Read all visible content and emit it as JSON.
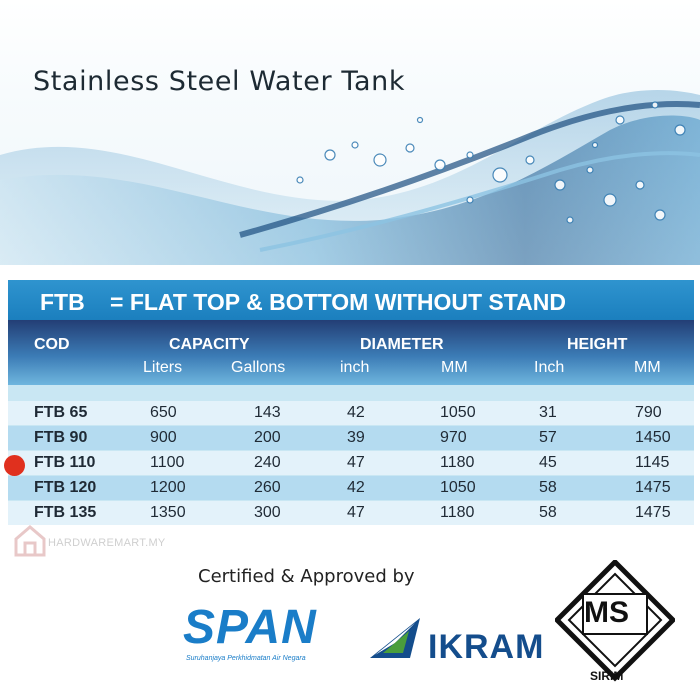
{
  "hero": {
    "title": "Stainless Steel Water Tank"
  },
  "table": {
    "banner_code": "FTB",
    "banner_desc": "= FLAT TOP & BOTTOM WITHOUT STAND",
    "headers": {
      "cod": "COD",
      "capacity": "CAPACITY",
      "diameter": "DIAMETER",
      "height": "HEIGHT",
      "liters": "Liters",
      "gallons": "Gallons",
      "dia_inch": "inch",
      "dia_mm": "MM",
      "ht_inch": "Inch",
      "ht_mm": "MM"
    },
    "rows": [
      {
        "code": "FTB 65",
        "liters": "650",
        "gallons": "143",
        "dia_inch": "42",
        "dia_mm": "1050",
        "ht_inch": "31",
        "ht_mm": "790"
      },
      {
        "code": "FTB 90",
        "liters": "900",
        "gallons": "200",
        "dia_inch": "39",
        "dia_mm": "970",
        "ht_inch": "57",
        "ht_mm": "1450"
      },
      {
        "code": "FTB 110",
        "liters": "1100",
        "gallons": "240",
        "dia_inch": "47",
        "dia_mm": "1180",
        "ht_inch": "45",
        "ht_mm": "1145"
      },
      {
        "code": "FTB 120",
        "liters": "1200",
        "gallons": "260",
        "dia_inch": "42",
        "dia_mm": "1050",
        "ht_inch": "58",
        "ht_mm": "1475"
      },
      {
        "code": "FTB 135",
        "liters": "1350",
        "gallons": "300",
        "dia_inch": "47",
        "dia_mm": "1180",
        "ht_inch": "58",
        "ht_mm": "1475"
      }
    ],
    "highlighted_row": "FTB 110",
    "highlight_color": "#e0301e"
  },
  "watermark": {
    "text": "HARDWAREMART.MY"
  },
  "certification": {
    "text": "Certified & Approved by",
    "span_logo": "SPAN",
    "span_subtitle": "Suruhanjaya Perkhidmatan Air Negara",
    "ikram_logo": "IKRAM",
    "ms_logo": "MS",
    "sirim_label": "SIRIM"
  },
  "colors": {
    "banner_blue": "#1b7fbe",
    "header_navy": "#233e75",
    "span_blue": "#1a7dc8",
    "ikram_navy": "#144d8c"
  }
}
